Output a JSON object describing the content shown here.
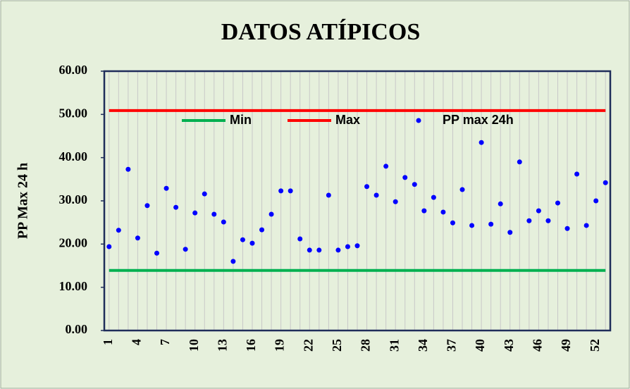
{
  "chart_data": {
    "type": "scatter",
    "title": "DATOS ATÍPICOS",
    "y_label": "PP Max 24 h",
    "categories": [
      "1",
      null,
      null,
      "4",
      null,
      null,
      "7",
      null,
      null,
      "10",
      null,
      null,
      "13",
      null,
      null,
      "16",
      null,
      null,
      "19",
      null,
      null,
      "22",
      null,
      null,
      "25",
      null,
      null,
      "28",
      null,
      null,
      "31",
      null,
      null,
      "34",
      null,
      null,
      "37",
      null,
      null,
      "40",
      null,
      null,
      "43",
      null,
      null,
      "46",
      null,
      null,
      "49",
      null,
      null,
      "52",
      null
    ],
    "series": [
      {
        "name": "Min",
        "color": "#00b050",
        "style": "line",
        "values": [
          13.9,
          13.9,
          13.9,
          13.9,
          13.9,
          13.9,
          13.9,
          13.9,
          13.9,
          13.9,
          13.9,
          13.9,
          13.9,
          13.9,
          13.9,
          13.9,
          13.9,
          13.9,
          13.9,
          13.9,
          13.9,
          13.9,
          13.9,
          13.9,
          13.9,
          13.9,
          13.9,
          13.9,
          13.9,
          13.9,
          13.9,
          13.9,
          13.9,
          13.9,
          13.9,
          13.9,
          13.9,
          13.9,
          13.9,
          13.9,
          13.9,
          13.9,
          13.9,
          13.9,
          13.9,
          13.9,
          13.9,
          13.9,
          13.9,
          13.9,
          13.9,
          13.9,
          13.9
        ]
      },
      {
        "name": "Max",
        "color": "#ff0000",
        "style": "line",
        "values": [
          50.9,
          50.9,
          50.9,
          50.9,
          50.9,
          50.9,
          50.9,
          50.9,
          50.9,
          50.9,
          50.9,
          50.9,
          50.9,
          50.9,
          50.9,
          50.9,
          50.9,
          50.9,
          50.9,
          50.9,
          50.9,
          50.9,
          50.9,
          50.9,
          50.9,
          50.9,
          50.9,
          50.9,
          50.9,
          50.9,
          50.9,
          50.9,
          50.9,
          50.9,
          50.9,
          50.9,
          50.9,
          50.9,
          50.9,
          50.9,
          50.9,
          50.9,
          50.9,
          50.9,
          50.9,
          50.9,
          50.9,
          50.9,
          50.9,
          50.9,
          50.9,
          50.9,
          50.9
        ]
      },
      {
        "name": "PP max 24h",
        "color": "#0000ff",
        "style": "marker",
        "values": [
          19.4,
          23.2,
          37.3,
          21.4,
          28.9,
          17.9,
          32.9,
          28.5,
          18.8,
          27.2,
          31.6,
          26.9,
          25.1,
          16.0,
          21.0,
          20.2,
          23.3,
          26.9,
          32.3,
          32.3,
          21.2,
          18.6,
          18.6,
          31.3,
          18.6,
          19.4,
          19.6,
          33.3,
          31.3,
          38.0,
          29.8,
          35.4,
          33.8,
          27.7,
          30.8,
          27.4,
          24.9,
          32.6,
          24.3,
          43.5,
          24.6,
          29.3,
          22.7,
          39.0,
          25.4,
          27.7,
          25.4,
          29.5,
          23.6,
          36.2,
          24.3,
          30.0,
          34.2
        ]
      }
    ],
    "ylim": [
      0,
      60
    ],
    "yticks": [
      {
        "value": 0,
        "label": "0.00"
      },
      {
        "value": 10,
        "label": "10.00"
      },
      {
        "value": 20,
        "label": "20.00"
      },
      {
        "value": 30,
        "label": "30.00"
      },
      {
        "value": 40,
        "label": "40.00"
      },
      {
        "value": 50,
        "label": "50.00"
      },
      {
        "value": 60,
        "label": "60.00"
      }
    ],
    "grid": true,
    "legend": "top"
  }
}
